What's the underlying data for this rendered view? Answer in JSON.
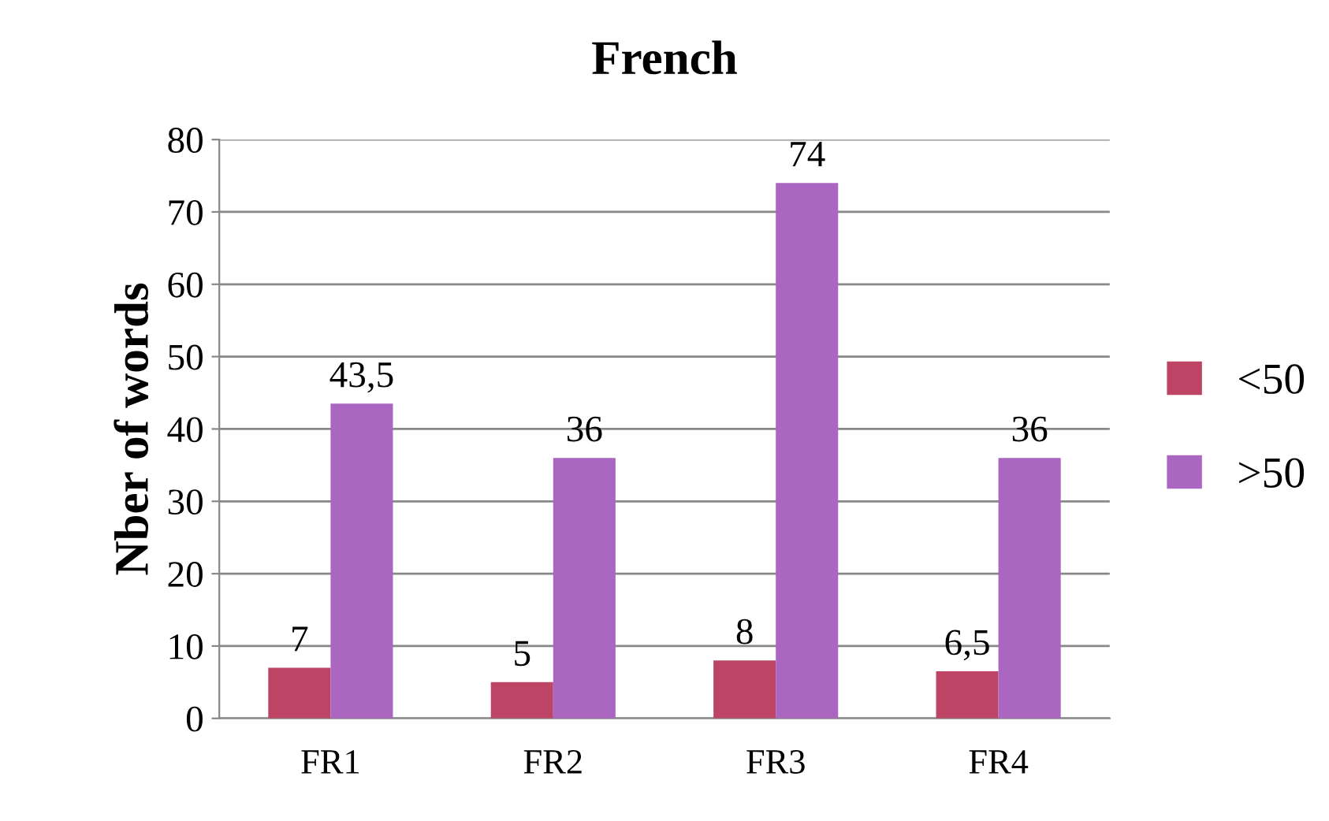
{
  "chart_data": {
    "type": "bar",
    "title": "French",
    "ylabel": "Nber of words",
    "categories": [
      "FR1",
      "FR2",
      "FR3",
      "FR4"
    ],
    "series": [
      {
        "name": "<50",
        "color": "#be4466",
        "values": [
          7,
          5,
          8,
          6.5
        ],
        "value_labels": [
          "7",
          "5",
          "8",
          "6,5"
        ]
      },
      {
        "name": ">50",
        "color": "#aa66c0",
        "values": [
          43.5,
          36,
          74,
          36
        ],
        "value_labels": [
          "43,5",
          "36",
          "74",
          "36"
        ]
      }
    ],
    "ylim": [
      0,
      80
    ],
    "yticks": [
      0,
      10,
      20,
      30,
      40,
      50,
      60,
      70,
      80
    ],
    "grid": "y",
    "legend": "right"
  }
}
